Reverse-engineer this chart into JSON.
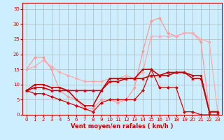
{
  "background_color": "#cceeff",
  "grid_color": "#aaaaaa",
  "xlabel": "Vent moyen/en rafales ( km/h )",
  "xlabel_color": "#cc0000",
  "tick_color": "#cc0000",
  "xlim": [
    -0.5,
    23.5
  ],
  "ylim": [
    0,
    37
  ],
  "xticks": [
    0,
    1,
    2,
    3,
    4,
    5,
    6,
    7,
    8,
    9,
    10,
    11,
    12,
    13,
    14,
    15,
    16,
    17,
    18,
    19,
    20,
    21,
    22,
    23
  ],
  "yticks": [
    0,
    5,
    10,
    15,
    20,
    25,
    30,
    35
  ],
  "lines": [
    {
      "x": [
        0,
        1,
        2,
        3,
        4,
        5,
        6,
        7,
        8,
        9,
        10,
        11,
        12,
        13,
        14,
        15,
        16,
        17,
        18,
        19,
        20,
        21,
        22,
        23
      ],
      "y": [
        15,
        19,
        19,
        15,
        8,
        6,
        5,
        2,
        2,
        5,
        5,
        4,
        5,
        9,
        21,
        31,
        32,
        27,
        26,
        27,
        27,
        24,
        1,
        1
      ],
      "color": "#ff9999",
      "linewidth": 0.9,
      "marker": "D",
      "markersize": 2.0,
      "zorder": 2
    },
    {
      "x": [
        0,
        1,
        2,
        3,
        4,
        5,
        6,
        7,
        8,
        9,
        10,
        11,
        12,
        13,
        14,
        15,
        16,
        17,
        18,
        19,
        20,
        21,
        22,
        23
      ],
      "y": [
        15,
        16,
        18,
        16,
        14,
        13,
        12,
        11,
        11,
        11,
        12,
        12,
        13,
        12,
        14,
        26,
        26,
        26,
        26,
        27,
        27,
        25,
        24,
        1
      ],
      "color": "#ffaaaa",
      "linewidth": 0.9,
      "marker": "D",
      "markersize": 2.0,
      "zorder": 2
    },
    {
      "x": [
        0,
        1,
        2,
        3,
        4,
        5,
        6,
        7,
        8,
        9,
        10,
        11,
        12,
        13,
        14,
        15,
        16,
        17,
        18,
        19,
        20,
        21,
        22,
        23
      ],
      "y": [
        8,
        10,
        10,
        9,
        9,
        8,
        5,
        3,
        3,
        8,
        12,
        12,
        12,
        12,
        15,
        15,
        13,
        13,
        14,
        14,
        13,
        13,
        1,
        1
      ],
      "color": "#cc0000",
      "linewidth": 1.2,
      "marker": "s",
      "markersize": 2.0,
      "zorder": 3
    },
    {
      "x": [
        0,
        1,
        2,
        3,
        4,
        5,
        6,
        7,
        8,
        9,
        10,
        11,
        12,
        13,
        14,
        15,
        16,
        17,
        18,
        19,
        20,
        21,
        22,
        23
      ],
      "y": [
        8,
        9,
        9,
        8,
        8,
        8,
        8,
        8,
        8,
        8,
        11,
        11,
        12,
        12,
        12,
        13,
        13,
        14,
        14,
        14,
        12,
        12,
        1,
        1
      ],
      "color": "#cc0000",
      "linewidth": 1.2,
      "marker": "^",
      "markersize": 2.5,
      "zorder": 3
    },
    {
      "x": [
        0,
        1,
        2,
        3,
        4,
        5,
        6,
        7,
        8,
        9,
        10,
        11,
        12,
        13,
        14,
        15,
        16,
        17,
        18,
        19,
        20,
        21,
        22,
        23
      ],
      "y": [
        8,
        7,
        7,
        6,
        5,
        4,
        3,
        2,
        1,
        4,
        5,
        5,
        5,
        5,
        8,
        15,
        9,
        9,
        9,
        1,
        1,
        0,
        0,
        0
      ],
      "color": "#dd0000",
      "linewidth": 0.9,
      "marker": "D",
      "markersize": 2.0,
      "zorder": 2
    }
  ],
  "figsize": [
    3.2,
    2.0
  ],
  "dpi": 100,
  "subplots_adjust": [
    0.1,
    0.18,
    0.99,
    0.98
  ]
}
